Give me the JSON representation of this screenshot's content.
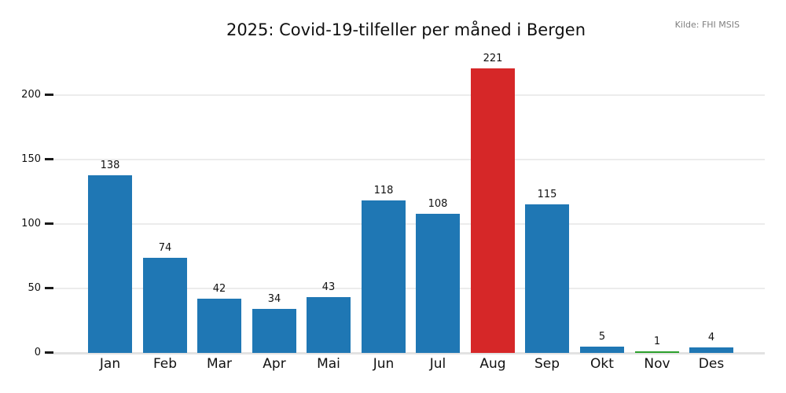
{
  "header": {
    "title": "2025: Covid-19-tilfeller per måned i Bergen",
    "source_note": "Kilde: FHI MSIS"
  },
  "chart_data": {
    "type": "bar",
    "title": "2025: Covid-19-tilfeller per måned i Bergen",
    "source_note": "Kilde: FHI MSIS",
    "categories": [
      "Jan",
      "Feb",
      "Mar",
      "Apr",
      "Mai",
      "Jun",
      "Jul",
      "Aug",
      "Sep",
      "Okt",
      "Nov",
      "Des"
    ],
    "values": [
      138,
      74,
      42,
      34,
      43,
      118,
      108,
      221,
      115,
      5,
      1,
      4
    ],
    "bar_colors": [
      "#1f77b4",
      "#1f77b4",
      "#1f77b4",
      "#1f77b4",
      "#1f77b4",
      "#1f77b4",
      "#1f77b4",
      "#d62728",
      "#1f77b4",
      "#1f77b4",
      "#2ca02c",
      "#1f77b4"
    ],
    "value_labels_shown": true,
    "xlabel": "",
    "ylabel": "",
    "yticks": [
      0,
      50,
      100,
      150,
      200
    ],
    "ylim": [
      0,
      232
    ],
    "grid": true,
    "legend": false
  },
  "colors": {
    "bar_default": "#1f77b4",
    "bar_highlight": "#d62728",
    "bar_low": "#2ca02c",
    "gridline": "#ececec",
    "baseline": "#e2e2e2",
    "tick": "#1a1a1a",
    "text": "#111111",
    "source_text": "#808080",
    "background": "#ffffff"
  }
}
